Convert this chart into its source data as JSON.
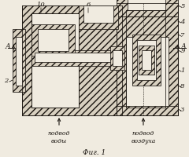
{
  "title": "Фиг. 1",
  "label_water": "подвод\nводы",
  "label_air": "подвод\nвоздуха",
  "bg_color": "#f0ebe0",
  "line_color": "#1a1510",
  "hatch_fc": "#d8d0c0"
}
